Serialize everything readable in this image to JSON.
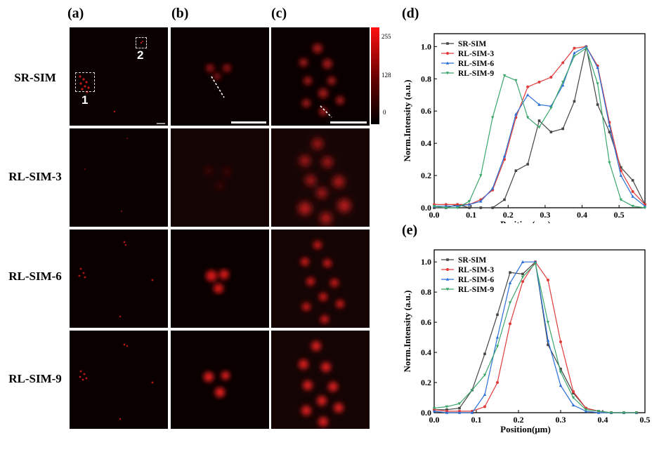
{
  "panels": {
    "a": "(a)",
    "b": "(b)",
    "c": "(c)",
    "d": "(d)",
    "e": "(e)"
  },
  "rows": [
    {
      "label": "SR-SIM"
    },
    {
      "label": "RL-SIM-3"
    },
    {
      "label": "RL-SIM-6"
    },
    {
      "label": "RL-SIM-9"
    }
  ],
  "roi_labels": {
    "roi1": "1",
    "roi2": "2"
  },
  "colorbar": {
    "max": "255",
    "mid": "128",
    "min": "0",
    "top_color": "#ff1010",
    "bottom_color": "#000000"
  },
  "series_colors": {
    "SR-SIM": "#444444",
    "RL-SIM-3": "#e03a3a",
    "RL-SIM-6": "#2a6fd6",
    "RL-SIM-9": "#3aa66a"
  },
  "chart_data": [
    {
      "type": "line",
      "panel": "(d)",
      "xlabel": "Position(μm)",
      "ylabel": "Norm.Intensity (a.u.)",
      "xlim": [
        0.0,
        0.57
      ],
      "ylim": [
        0.0,
        1.08
      ],
      "xticks": [
        "0.0",
        "0.1",
        "0.2",
        "0.3",
        "0.4",
        "0.5"
      ],
      "yticks": [
        "0.0",
        "0.2",
        "0.4",
        "0.6",
        "0.8",
        "1.0"
      ],
      "legend": "top-left",
      "series": [
        {
          "name": "SR-SIM",
          "x": [
            0.0,
            0.032,
            0.063,
            0.095,
            0.126,
            0.158,
            0.19,
            0.221,
            0.253,
            0.284,
            0.316,
            0.348,
            0.379,
            0.411,
            0.442,
            0.474,
            0.505,
            0.537,
            0.57
          ],
          "y": [
            0.0,
            0.0,
            0.02,
            0.0,
            0.0,
            0.0,
            0.05,
            0.23,
            0.27,
            0.54,
            0.47,
            0.49,
            0.66,
            1.0,
            0.64,
            0.47,
            0.25,
            0.17,
            0.02
          ]
        },
        {
          "name": "RL-SIM-3",
          "x": [
            0.0,
            0.032,
            0.063,
            0.095,
            0.126,
            0.158,
            0.19,
            0.221,
            0.253,
            0.284,
            0.316,
            0.348,
            0.379,
            0.411,
            0.442,
            0.474,
            0.505,
            0.537,
            0.57
          ],
          "y": [
            0.02,
            0.02,
            0.02,
            0.02,
            0.05,
            0.11,
            0.3,
            0.56,
            0.75,
            0.78,
            0.81,
            0.9,
            0.99,
            1.0,
            0.88,
            0.53,
            0.23,
            0.1,
            0.02
          ]
        },
        {
          "name": "RL-SIM-6",
          "x": [
            0.0,
            0.032,
            0.063,
            0.095,
            0.126,
            0.158,
            0.19,
            0.221,
            0.253,
            0.284,
            0.316,
            0.348,
            0.379,
            0.411,
            0.442,
            0.474,
            0.505,
            0.537,
            0.57
          ],
          "y": [
            0.01,
            0.01,
            0.01,
            0.02,
            0.04,
            0.12,
            0.32,
            0.58,
            0.7,
            0.64,
            0.63,
            0.76,
            0.96,
            1.0,
            0.87,
            0.51,
            0.2,
            0.07,
            0.01
          ]
        },
        {
          "name": "RL-SIM-9",
          "x": [
            0.0,
            0.032,
            0.063,
            0.095,
            0.126,
            0.158,
            0.19,
            0.221,
            0.253,
            0.284,
            0.316,
            0.348,
            0.379,
            0.411,
            0.442,
            0.474,
            0.505,
            0.537,
            0.57
          ],
          "y": [
            0.01,
            0.0,
            0.0,
            0.04,
            0.2,
            0.56,
            0.82,
            0.79,
            0.56,
            0.5,
            0.62,
            0.78,
            0.94,
            0.99,
            0.77,
            0.28,
            0.05,
            0.01,
            0.0
          ]
        }
      ]
    },
    {
      "type": "line",
      "panel": "(e)",
      "xlabel": "Position(μm)",
      "ylabel": "Norm.Intensity (a.u.)",
      "xlim": [
        0.0,
        0.5
      ],
      "ylim": [
        0.0,
        1.08
      ],
      "xticks": [
        "0.0",
        "0.1",
        "0.2",
        "0.3",
        "0.4",
        "0.5"
      ],
      "yticks": [
        "0.0",
        "0.2",
        "0.4",
        "0.6",
        "0.8",
        "1.0"
      ],
      "legend": "top-left",
      "series": [
        {
          "name": "SR-SIM",
          "x": [
            0.0,
            0.03,
            0.06,
            0.09,
            0.12,
            0.15,
            0.18,
            0.21,
            0.24,
            0.27,
            0.3,
            0.33,
            0.36,
            0.39,
            0.42,
            0.45,
            0.48
          ],
          "y": [
            0.02,
            0.02,
            0.03,
            0.15,
            0.39,
            0.65,
            0.93,
            0.92,
            1.0,
            0.45,
            0.29,
            0.13,
            0.03,
            0.01,
            0.0,
            0.0,
            0.0
          ]
        },
        {
          "name": "RL-SIM-3",
          "x": [
            0.0,
            0.03,
            0.06,
            0.09,
            0.12,
            0.15,
            0.18,
            0.21,
            0.24,
            0.27,
            0.3,
            0.33,
            0.36,
            0.39,
            0.42,
            0.45,
            0.48
          ],
          "y": [
            0.02,
            0.01,
            0.01,
            0.01,
            0.04,
            0.2,
            0.59,
            0.87,
            1.0,
            0.88,
            0.47,
            0.14,
            0.03,
            0.01,
            0.0,
            0.0,
            0.0
          ]
        },
        {
          "name": "RL-SIM-6",
          "x": [
            0.0,
            0.03,
            0.06,
            0.09,
            0.12,
            0.15,
            0.18,
            0.21,
            0.24,
            0.27,
            0.3,
            0.33,
            0.36,
            0.39,
            0.42,
            0.45,
            0.48
          ],
          "y": [
            0.01,
            0.0,
            0.0,
            0.0,
            0.12,
            0.5,
            0.86,
            1.0,
            1.0,
            0.48,
            0.18,
            0.05,
            0.01,
            0.0,
            0.0,
            0.0,
            0.0
          ]
        },
        {
          "name": "RL-SIM-9",
          "x": [
            0.0,
            0.03,
            0.06,
            0.09,
            0.12,
            0.15,
            0.18,
            0.21,
            0.24,
            0.27,
            0.3,
            0.33,
            0.36,
            0.39,
            0.42,
            0.45,
            0.48
          ],
          "y": [
            0.03,
            0.04,
            0.06,
            0.15,
            0.25,
            0.44,
            0.73,
            0.9,
            0.99,
            0.6,
            0.27,
            0.1,
            0.02,
            0.01,
            0.0,
            0.0,
            0.0
          ]
        }
      ]
    }
  ]
}
